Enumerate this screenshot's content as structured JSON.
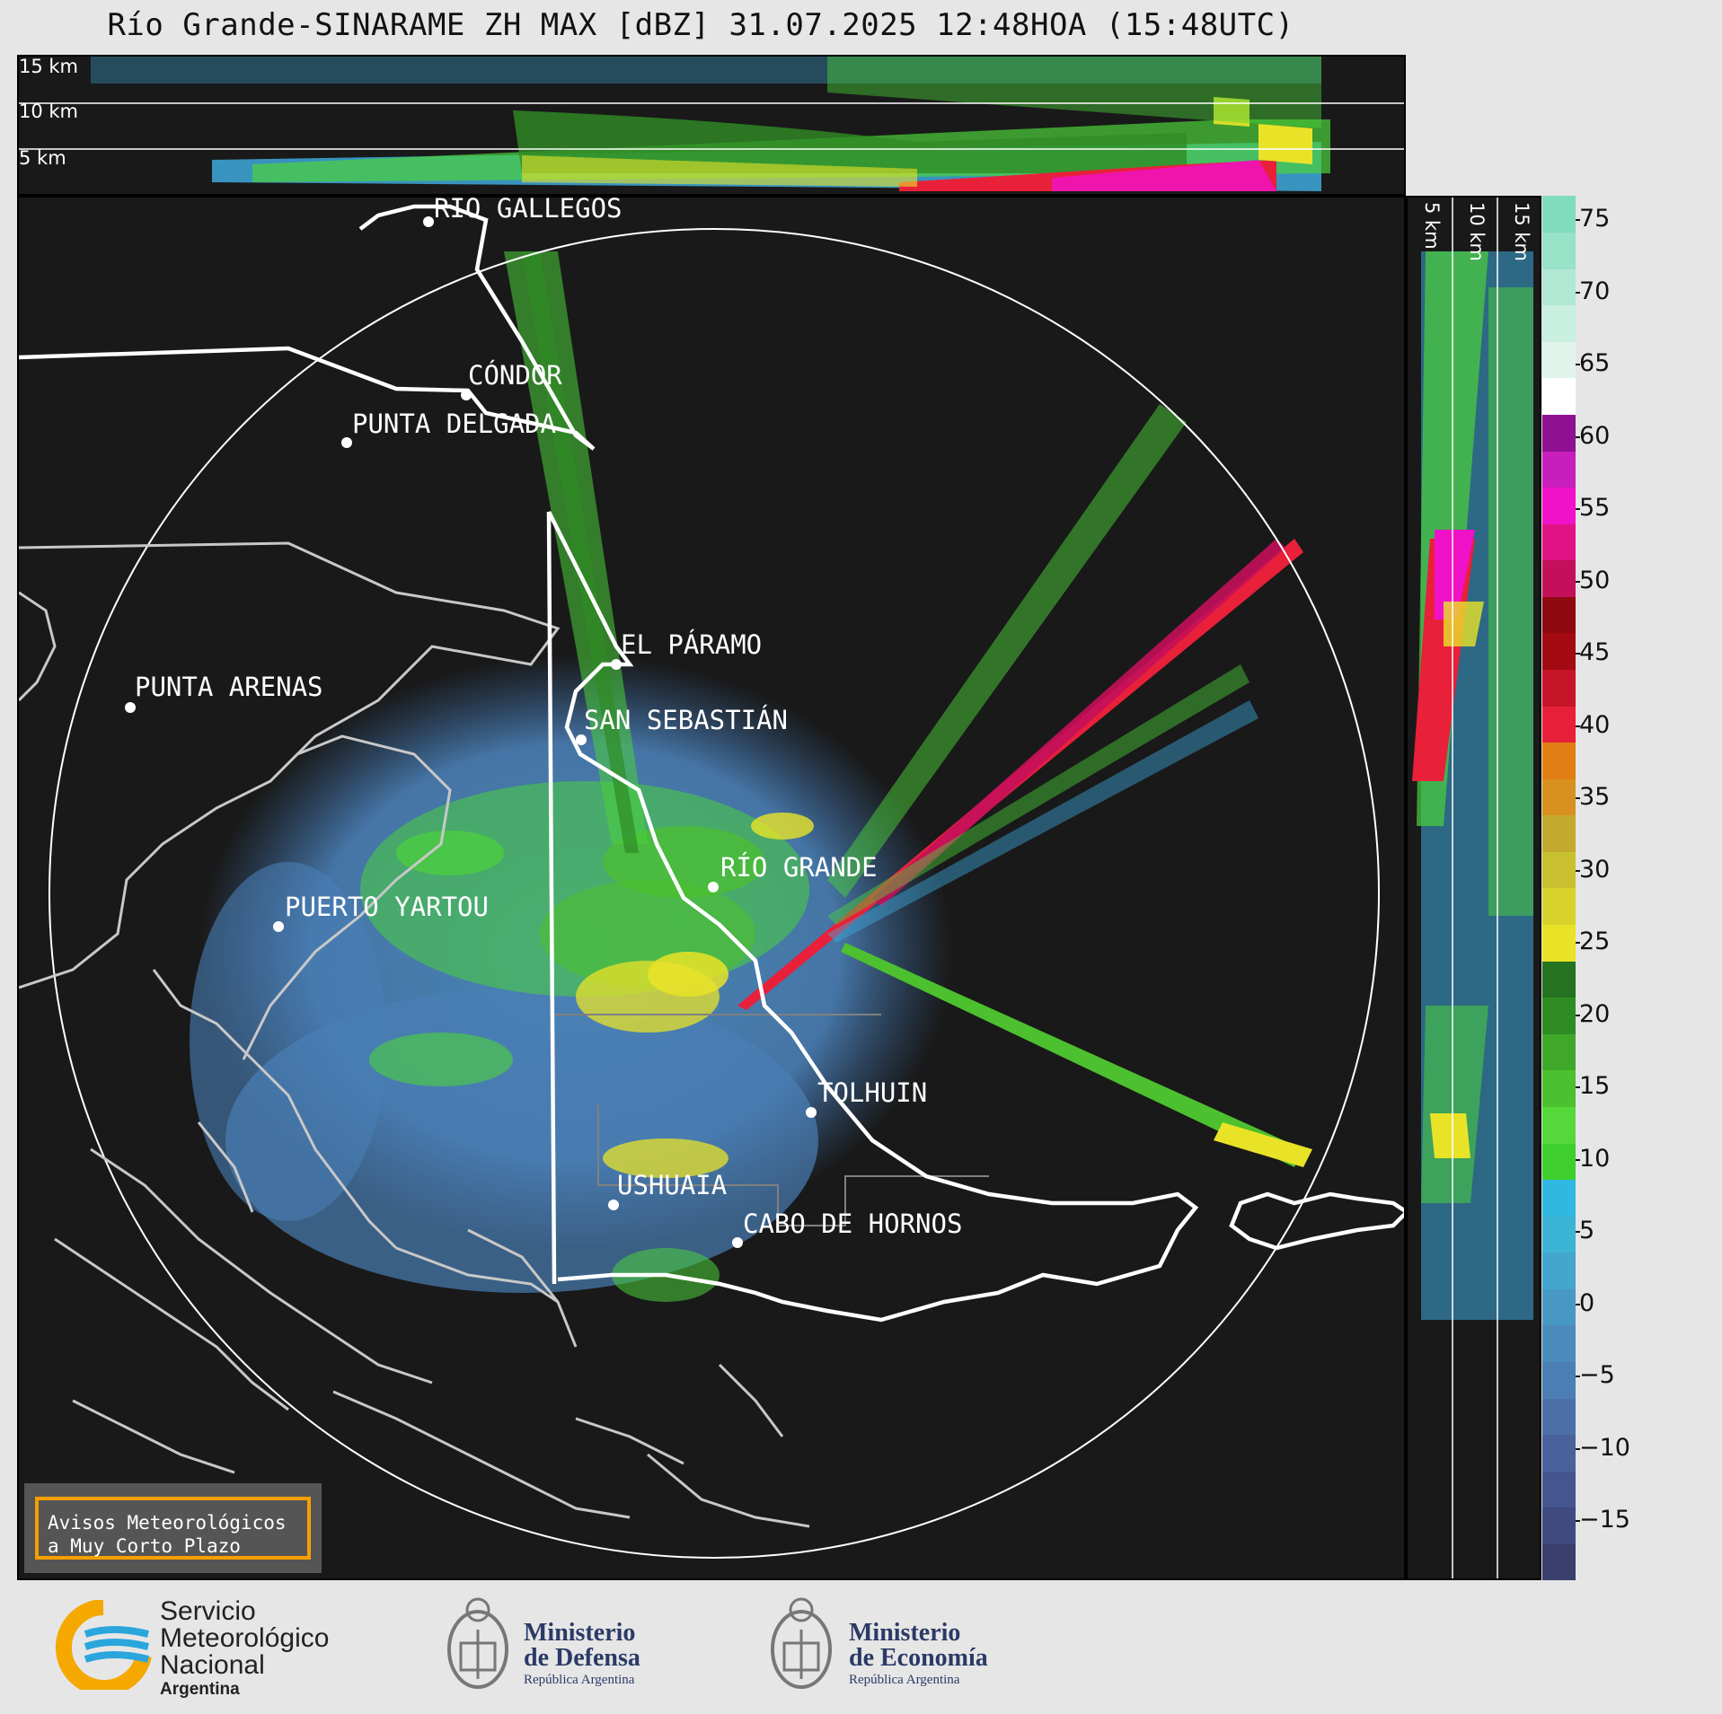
{
  "title": "Río Grande-SINARAME ZH MAX [dBZ] 31.07.2025 12:48HOA (15:48UTC)",
  "top_panel": {
    "height_labels": [
      "15 km",
      "10 km",
      "5 km"
    ]
  },
  "right_panel": {
    "height_labels": [
      "5 km",
      "10 km",
      "15 km"
    ]
  },
  "places": [
    {
      "name": "RÍO GALLEGOS"
    },
    {
      "name": "CÓNDOR"
    },
    {
      "name": "PUNTA DELGADA"
    },
    {
      "name": "EL PÁRAMO"
    },
    {
      "name": "PUNTA ARENAS"
    },
    {
      "name": "SAN SEBASTIÁN"
    },
    {
      "name": "RÍO GRANDE"
    },
    {
      "name": "PUERTO YARTOU"
    },
    {
      "name": "TOLHUIN"
    },
    {
      "name": "USHUAIA"
    },
    {
      "name": "CABO DE HORNOS"
    }
  ],
  "colorbar": {
    "unit": "dBZ",
    "ticks": [
      "75",
      "70",
      "65",
      "60",
      "55",
      "50",
      "45",
      "40",
      "35",
      "30",
      "25",
      "20",
      "15",
      "10",
      "5",
      "0",
      "−5",
      "−10",
      "−15"
    ],
    "colors": [
      "#3a3f6e",
      "#3f4a80",
      "#45558f",
      "#4a629c",
      "#4b70a8",
      "#4b7eb2",
      "#4a8bbb",
      "#4898c4",
      "#44a6cc",
      "#3cb4d6",
      "#2fb9e0",
      "#3ecf2d",
      "#55d93a",
      "#4cc02e",
      "#3fa82a",
      "#2f8c25",
      "#257220",
      "#e9e328",
      "#d8d32a",
      "#c9c030",
      "#c4a92f",
      "#d8911f",
      "#e27f14",
      "#e8203a",
      "#c61428",
      "#a40a12",
      "#8e0a10",
      "#c4105a",
      "#e01285",
      "#f012c8",
      "#c81fbc",
      "#8f1093",
      "#ffffff",
      "#e0f4ec",
      "#c8efe0",
      "#b0e8d4",
      "#98e2c8",
      "#80dcbc"
    ]
  },
  "warning": {
    "line1": "Avisos Meteorológicos",
    "line2": "a Muy Corto Plazo"
  },
  "logos": {
    "smn": {
      "line1": "Servicio",
      "line2": "Meteorológico",
      "line3": "Nacional",
      "line4": "Argentina"
    },
    "defensa": {
      "line1": "Ministerio",
      "line2": "de Defensa",
      "line3": "República Argentina"
    },
    "economia": {
      "line1": "Ministerio",
      "line2": "de Economía",
      "line3": "República Argentina"
    }
  }
}
